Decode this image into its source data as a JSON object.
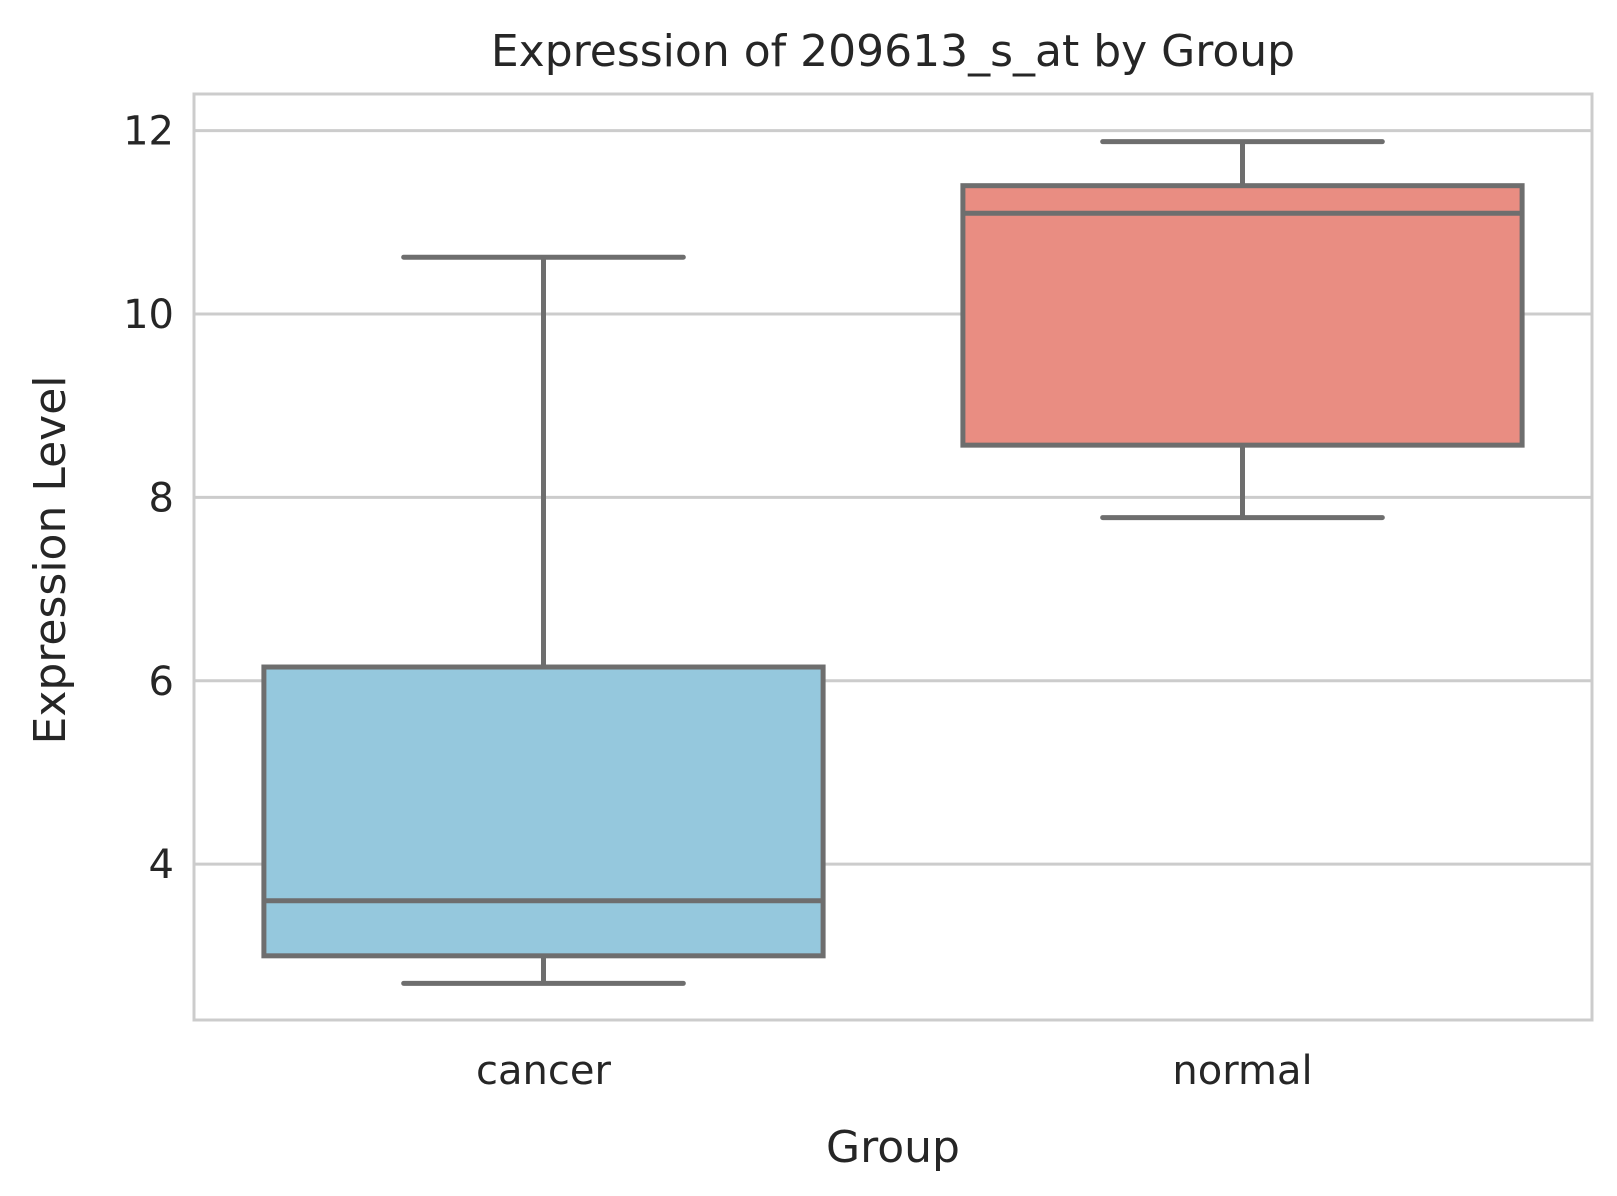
{
  "chart_data": {
    "type": "box",
    "title": "Expression of 209613_s_at by Group",
    "xlabel": "Group",
    "ylabel": "Expression Level",
    "ylim": [
      2.3,
      12.4
    ],
    "yticks": [
      4,
      6,
      8,
      10,
      12
    ],
    "grid": true,
    "colors": {
      "box_stroke": "#6e6e6e",
      "grid": "#cccccc",
      "frame": "#cccccc"
    },
    "categories": [
      "cancer",
      "normal"
    ],
    "boxes": [
      {
        "category": "cancer",
        "whisker_low": 2.7,
        "q1": 3.0,
        "median": 3.6,
        "q3": 6.15,
        "whisker_high": 10.62,
        "color": "#95c8dd"
      },
      {
        "category": "normal",
        "whisker_low": 7.78,
        "q1": 8.57,
        "median": 11.1,
        "q3": 11.4,
        "whisker_high": 11.88,
        "color": "#e98d82"
      }
    ]
  }
}
